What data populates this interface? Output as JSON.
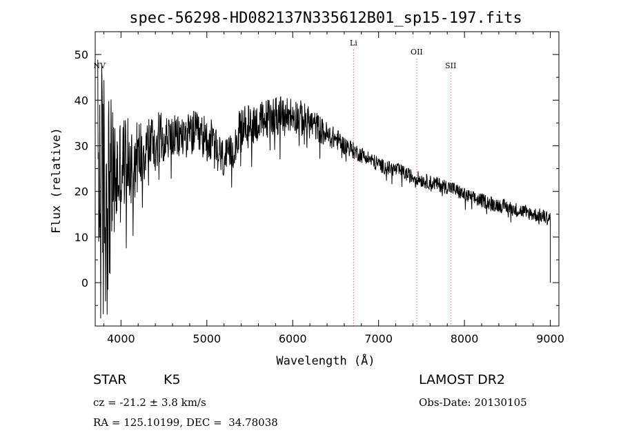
{
  "chart_data": {
    "type": "line",
    "title": "spec-56298-HD082137N335612B01_sp15-197.fits",
    "xlabel": "Wavelength (Å)",
    "ylabel": "Flux (relative)",
    "xlim": [
      3700,
      9100
    ],
    "ylim": [
      -9.5,
      55
    ],
    "x_ticks": [
      4000,
      5000,
      6000,
      7000,
      8000,
      9000
    ],
    "y_ticks": [
      0,
      10,
      20,
      30,
      40,
      50
    ],
    "grid": false,
    "line_color": "#000000",
    "marker_color": "#d06060",
    "spectral_lines": [
      {
        "label": "NV",
        "wavelength": 3750,
        "label_flux": 47
      },
      {
        "label": "Li",
        "wavelength": 6708,
        "label_flux": 52
      },
      {
        "label": "OII",
        "wavelength": 7444,
        "label_flux": 50
      },
      {
        "label": "SII",
        "wavelength": 7840,
        "label_flux": 47
      }
    ],
    "series": [
      {
        "x": [
          3730,
          3780,
          3820,
          3870,
          3900,
          3950,
          4000,
          4050,
          4100,
          4150,
          4200,
          4250,
          4300,
          4350,
          4400,
          4450,
          4500,
          4550,
          4600,
          4650,
          4700,
          4750,
          4800,
          4850,
          4900,
          4950,
          5000,
          5050,
          5100,
          5150,
          5200,
          5250,
          5300,
          5350,
          5400,
          5450,
          5500,
          5550,
          5600,
          5650,
          5700,
          5750,
          5800,
          5850,
          5900,
          5950,
          6000,
          6050,
          6100,
          6150,
          6200,
          6250,
          6300,
          6350,
          6400,
          6450,
          6500,
          6550,
          6600,
          6650,
          6700,
          6750,
          6800,
          6850,
          6900,
          6950,
          7000,
          7050,
          7100,
          7150,
          7200,
          7250,
          7300,
          7350,
          7400,
          7450,
          7500,
          7550,
          7600,
          7650,
          7700,
          7750,
          7800,
          7850,
          7900,
          7950,
          8000,
          8050,
          8100,
          8150,
          8200,
          8250,
          8300,
          8350,
          8400,
          8450,
          8500,
          8550,
          8600,
          8650,
          8700,
          8750,
          8800,
          8850,
          8900,
          8950,
          9000
        ],
        "y": [
          24,
          18,
          19,
          21,
          22,
          23,
          25,
          27,
          26,
          26.5,
          28,
          29,
          30,
          31,
          31,
          32,
          32,
          32,
          32,
          31.5,
          32,
          32.5,
          32,
          33,
          32,
          32,
          31.5,
          31,
          29,
          28,
          27,
          27,
          29,
          32,
          34,
          34.5,
          34.5,
          35,
          35,
          35.5,
          36,
          36.5,
          37,
          36.5,
          36,
          37,
          37,
          36.5,
          36,
          35.5,
          35,
          34.5,
          34,
          33,
          32.5,
          32,
          31.5,
          31,
          30,
          29.8,
          29,
          28.5,
          28,
          27.8,
          27,
          26.5,
          26,
          25.5,
          25.2,
          25,
          24.8,
          24.5,
          24,
          23.5,
          23.2,
          23,
          22.5,
          22.2,
          22,
          21.8,
          21.5,
          21.2,
          21,
          20.8,
          20.2,
          19.8,
          19.2,
          18.8,
          18.5,
          18.2,
          18,
          17.8,
          17.5,
          17.2,
          17,
          16.8,
          16.5,
          16.3,
          16,
          15.8,
          15.6,
          15.3,
          15,
          14.8,
          14.6,
          14.4,
          14.2
        ],
        "noise": [
          28,
          32,
          30,
          22,
          16,
          13,
          12,
          10,
          9.5,
          9,
          8,
          7.5,
          7,
          6.5,
          6,
          5.8,
          5.5,
          5.3,
          5,
          5,
          5,
          5,
          5,
          5,
          5,
          5,
          5,
          5,
          4.8,
          4.6,
          4.5,
          4.5,
          4.5,
          4.5,
          4.5,
          4.5,
          4.5,
          4.5,
          4.5,
          4.5,
          4.5,
          4.5,
          4.5,
          4.5,
          4.5,
          4.2,
          4,
          4,
          4,
          3.8,
          3.5,
          3.3,
          3.2,
          3,
          2.8,
          2.6,
          2.4,
          2.2,
          2,
          2,
          1.9,
          1.8,
          1.8,
          1.7,
          1.7,
          1.7,
          1.6,
          1.6,
          1.6,
          1.6,
          1.6,
          1.6,
          1.6,
          1.6,
          1.6,
          1.6,
          1.6,
          1.6,
          1.6,
          1.6,
          1.6,
          1.6,
          1.6,
          1.6,
          1.6,
          1.6,
          1.6,
          1.6,
          1.6,
          1.6,
          1.6,
          1.6,
          1.6,
          1.6,
          1.6,
          1.6,
          1.6,
          1.6,
          1.6,
          1.6,
          1.6,
          1.6,
          1.6,
          1.6,
          1.6,
          1.6,
          1.6
        ]
      }
    ]
  },
  "info": {
    "object_type": "STAR",
    "subclass": "K5",
    "survey": "LAMOST DR2",
    "velocity": "cz = -21.2 ± 3.8 km/s",
    "obs_date": "Obs-Date: 20130105",
    "coords": "RA = 125.10199, DEC =  34.78038"
  }
}
